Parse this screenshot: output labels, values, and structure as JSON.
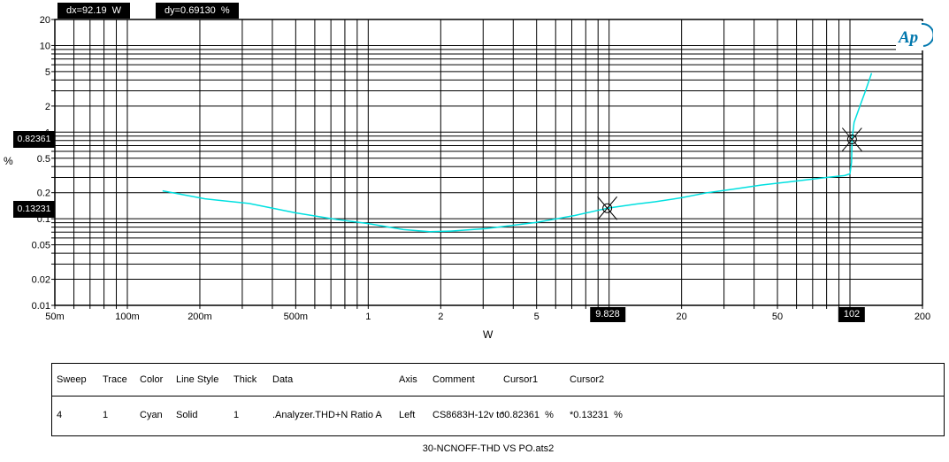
{
  "plot": {
    "ylabel": "%",
    "xlabel": "W",
    "trace_color": "#00e0e0",
    "logo": {
      "text": "Ap",
      "color": "#0077ad"
    }
  },
  "chart_data": {
    "type": "line",
    "title": "30-NCNOFF-THD VS PO.ats2",
    "xlabel": "W",
    "ylabel": "%",
    "x_scale": "log",
    "y_scale": "log",
    "xlim": [
      0.05,
      200
    ],
    "ylim": [
      0.01,
      20
    ],
    "grid": "log minor gridlines on both axes, solid black",
    "legend_position": "table below plot",
    "x_ticks": [
      {
        "v": 0.05,
        "label": "50m"
      },
      {
        "v": 0.1,
        "label": "100m"
      },
      {
        "v": 0.2,
        "label": "200m"
      },
      {
        "v": 0.5,
        "label": "500m"
      },
      {
        "v": 1,
        "label": "1"
      },
      {
        "v": 2,
        "label": "2"
      },
      {
        "v": 5,
        "label": "5"
      },
      {
        "v": 10,
        "label": "10"
      },
      {
        "v": 20,
        "label": "20"
      },
      {
        "v": 50,
        "label": "50"
      },
      {
        "v": 100,
        "label": "100"
      },
      {
        "v": 200,
        "label": "200"
      }
    ],
    "y_ticks": [
      {
        "v": 20,
        "label": "20"
      },
      {
        "v": 10,
        "label": "10"
      },
      {
        "v": 5,
        "label": "5"
      },
      {
        "v": 2,
        "label": "2"
      },
      {
        "v": 1,
        "label": "1"
      },
      {
        "v": 0.5,
        "label": "0.5"
      },
      {
        "v": 0.2,
        "label": "0.2"
      },
      {
        "v": 0.1,
        "label": "0.1"
      },
      {
        "v": 0.05,
        "label": "0.05"
      },
      {
        "v": 0.02,
        "label": "0.02"
      },
      {
        "v": 0.01,
        "label": "0.01"
      }
    ],
    "series": [
      {
        "name": ".Analyzer.THD+N Ratio A",
        "color": "Cyan",
        "line_style": "Solid",
        "thickness": 1,
        "axis": "Left",
        "x": [
          0.14,
          0.21,
          0.32,
          0.5,
          0.74,
          1.0,
          1.4,
          1.8,
          2.2,
          3.1,
          5.0,
          7.2,
          9.828,
          13,
          15.5,
          20,
          25.6,
          33,
          42.7,
          55,
          65,
          80,
          95,
          100,
          101.5,
          102,
          104,
          110,
          116,
          123
        ],
        "y": [
          0.21,
          0.17,
          0.15,
          0.117,
          0.098,
          0.088,
          0.075,
          0.071,
          0.072,
          0.077,
          0.091,
          0.109,
          0.13231,
          0.148,
          0.157,
          0.175,
          0.2,
          0.22,
          0.245,
          0.265,
          0.28,
          0.3,
          0.315,
          0.33,
          0.45,
          0.82361,
          1.3,
          2.0,
          3.0,
          4.8
        ]
      }
    ],
    "cursors": [
      {
        "name": "Cursor1",
        "x": 102,
        "y": 0.82361,
        "x_label": "102",
        "y_label": "0.82361",
        "unit": "%"
      },
      {
        "name": "Cursor2",
        "x": 9.828,
        "y": 0.13231,
        "x_label": "9.828",
        "y_label": "0.13231",
        "unit": "%"
      }
    ],
    "dx_label": "dx=92.19  W",
    "dy_label": "dy=0.69130  %"
  },
  "table": {
    "headers": [
      "Sweep",
      "Trace",
      "Color",
      "Line Style",
      "Thick",
      "Data",
      "Axis",
      "Comment",
      "Cursor1",
      "Cursor2"
    ],
    "rows": [
      [
        "4",
        "1",
        "Cyan",
        "Solid",
        "1",
        ".Analyzer.THD+N Ratio A",
        "Left",
        "CS8683H-12v to",
        "*0.82361  %",
        "*0.13231  %"
      ]
    ]
  },
  "footer": {
    "filename": "30-NCNOFF-THD VS PO.ats2"
  }
}
